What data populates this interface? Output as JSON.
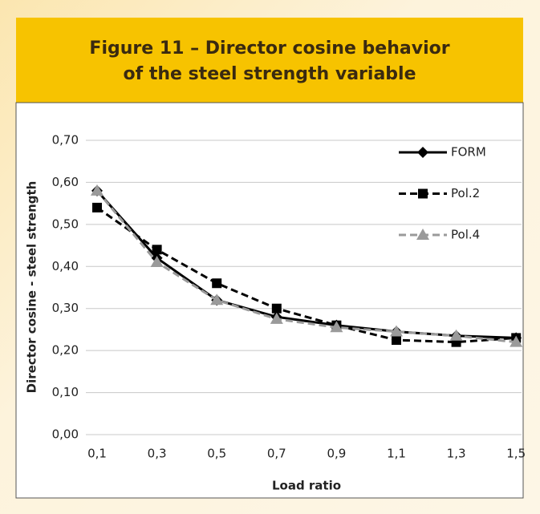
{
  "chart_data": {
    "type": "line",
    "title": [
      "Figure 11 – Director cosine behavior",
      "of the steel strength variable"
    ],
    "x_label": "Load ratio",
    "y_label": "Director cosine - steel strength",
    "categories": [
      "0,1",
      "0,3",
      "0,5",
      "0,7",
      "0,9",
      "1,1",
      "1,3",
      "1,5"
    ],
    "series": [
      {
        "name": "FORM",
        "color": "#000000",
        "dash": false,
        "marker": "diamond",
        "values": [
          0.58,
          0.42,
          0.32,
          0.28,
          0.26,
          0.245,
          0.235,
          0.23
        ]
      },
      {
        "name": "Pol.2",
        "color": "#000000",
        "dash": true,
        "marker": "square",
        "values": [
          0.54,
          0.44,
          0.36,
          0.3,
          0.26,
          0.225,
          0.22,
          0.23
        ]
      },
      {
        "name": "Pol.4",
        "color": "#9a9a9a",
        "dash": true,
        "marker": "triangle",
        "values": [
          0.58,
          0.41,
          0.32,
          0.275,
          0.255,
          0.245,
          0.235,
          0.22
        ]
      }
    ],
    "ylim": [
      0,
      0.7
    ],
    "yticks": [
      {
        "value": 0,
        "label": "0,00"
      },
      {
        "value": 0.1,
        "label": "0,10"
      },
      {
        "value": 0.2,
        "label": "0,20"
      },
      {
        "value": 0.3,
        "label": "0,30"
      },
      {
        "value": 0.4,
        "label": "0,40"
      },
      {
        "value": 0.5,
        "label": "0,50"
      },
      {
        "value": 0.6,
        "label": "0,60"
      },
      {
        "value": 0.7,
        "label": "0,70"
      }
    ],
    "grid": true,
    "legend": "top-right"
  }
}
